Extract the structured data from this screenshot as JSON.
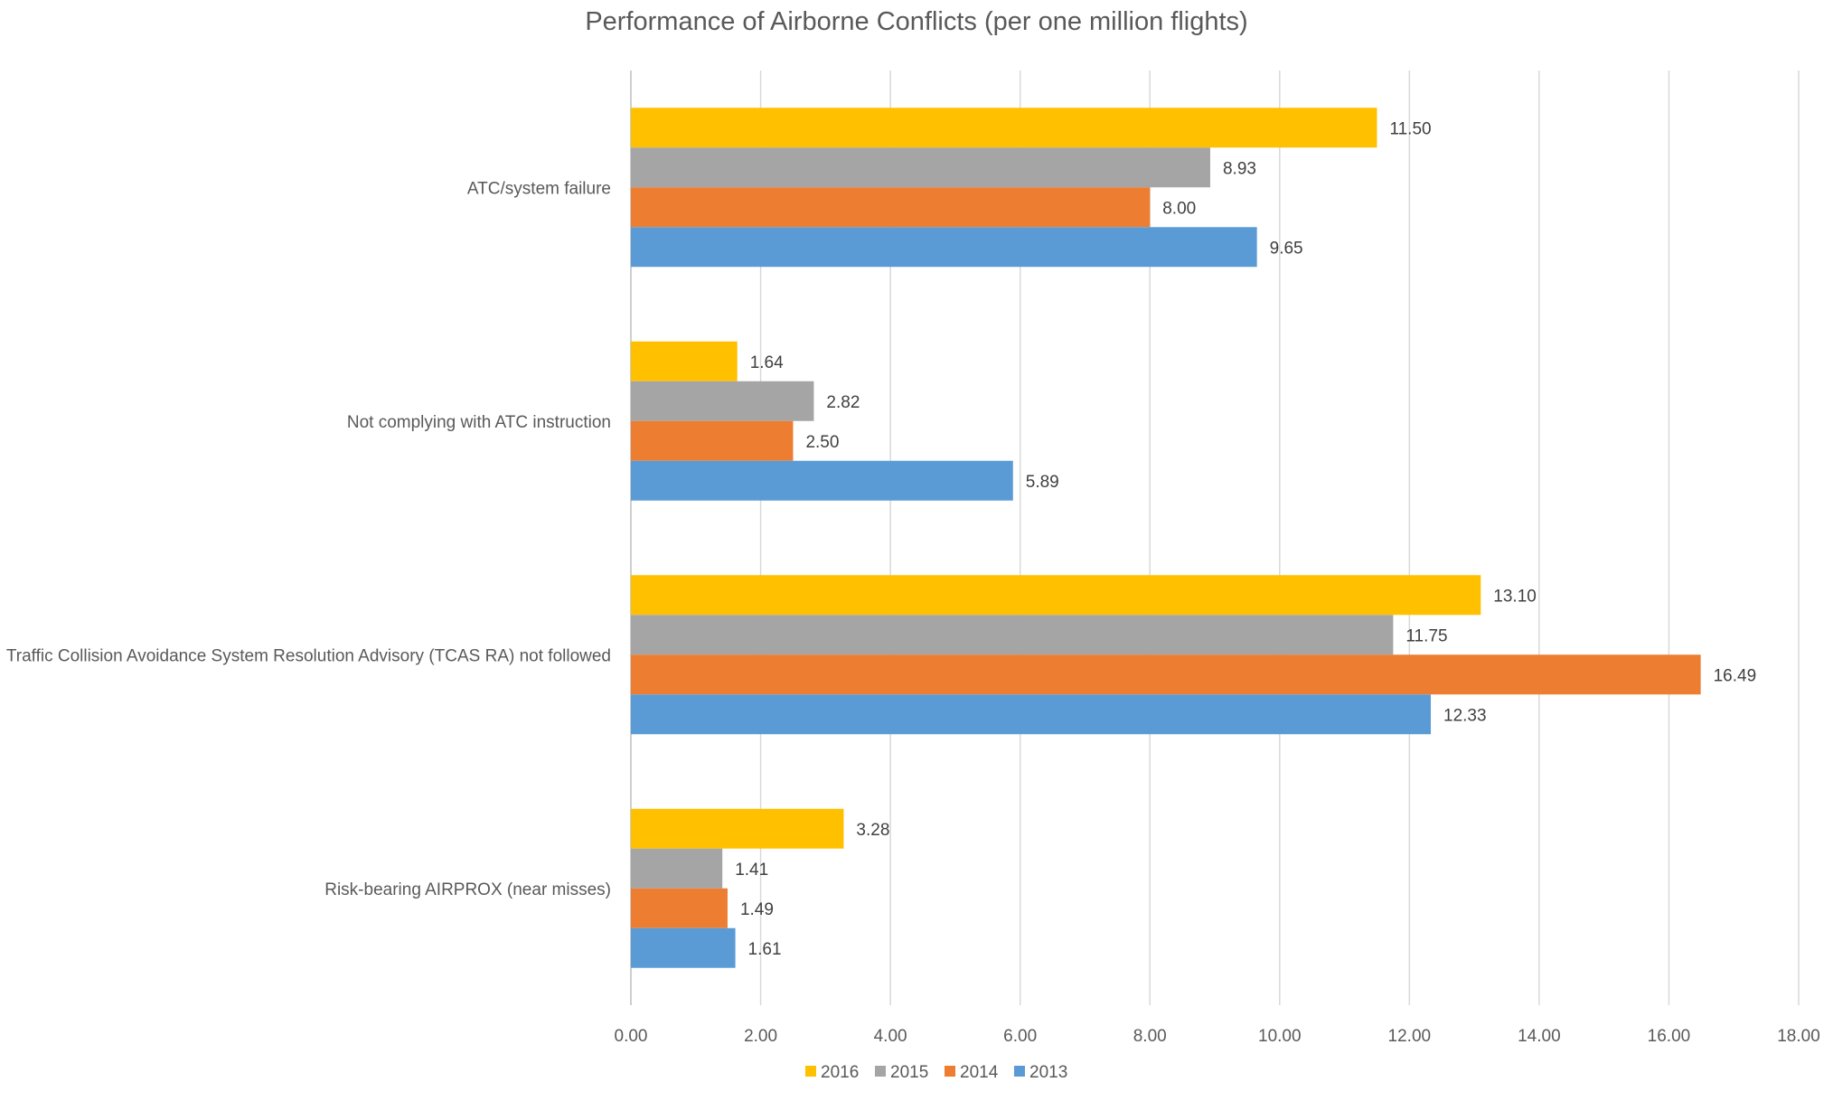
{
  "chart_data": {
    "type": "bar",
    "orientation": "horizontal",
    "title": "Performance of Airborne Conflicts (per one million flights)",
    "categories": [
      "ATC/system failure",
      "Not complying with ATC instruction",
      "Traffic Collision Avoidance System Resolution Advisory (TCAS RA) not followed",
      "Risk-bearing AIRPROX (near misses)"
    ],
    "series": [
      {
        "name": "2016",
        "color": "#FFC000",
        "values": [
          11.5,
          1.64,
          13.1,
          3.28
        ]
      },
      {
        "name": "2015",
        "color": "#A5A5A5",
        "values": [
          8.93,
          2.82,
          11.75,
          1.41
        ]
      },
      {
        "name": "2014",
        "color": "#ED7D31",
        "values": [
          8.0,
          2.5,
          16.49,
          1.49
        ]
      },
      {
        "name": "2013",
        "color": "#5B9BD5",
        "values": [
          9.65,
          5.89,
          12.33,
          1.61
        ]
      }
    ],
    "xlim": [
      0,
      18
    ],
    "xticks": [
      "0.00",
      "2.00",
      "4.00",
      "6.00",
      "8.00",
      "10.00",
      "12.00",
      "14.00",
      "16.00",
      "18.00"
    ],
    "grid": true,
    "legend_position": "bottom",
    "legend_order": [
      "2016",
      "2015",
      "2014",
      "2013"
    ]
  }
}
